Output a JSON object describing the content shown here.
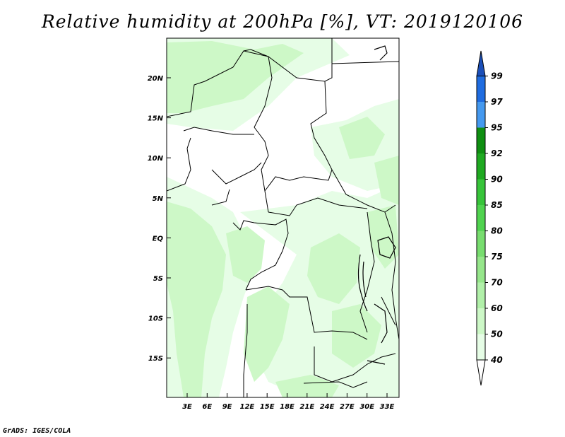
{
  "title": "Relative humidity at 200hPa [%], VT: 2019120106",
  "footer": "GrADS: IGES/COLA",
  "map": {
    "lat_ticks": [
      "20N",
      "15N",
      "10N",
      "5N",
      "EQ",
      "5S",
      "10S",
      "15S"
    ],
    "lon_ticks": [
      "3E",
      "6E",
      "9E",
      "12E",
      "15E",
      "18E",
      "21E",
      "24E",
      "27E",
      "30E",
      "33E"
    ],
    "lon_range": [
      0,
      35
    ],
    "lat_range": [
      -20,
      25
    ]
  },
  "colorbar": {
    "levels": [
      "99",
      "97",
      "95",
      "92",
      "90",
      "85",
      "80",
      "75",
      "70",
      "60",
      "50",
      "40"
    ],
    "colors": [
      "#ffffff",
      "#e6fde6",
      "#cdf8c7",
      "#b1f0a9",
      "#96e68b",
      "#78dd6f",
      "#50d34f",
      "#37c43a",
      "#1fa921",
      "#0f8f12",
      "#4599ef",
      "#1f6ce0",
      "#1b4fb9"
    ]
  },
  "colors": {
    "light_green": "#cdf8c7",
    "pale_green": "#e6fde6",
    "border": "#000000"
  }
}
